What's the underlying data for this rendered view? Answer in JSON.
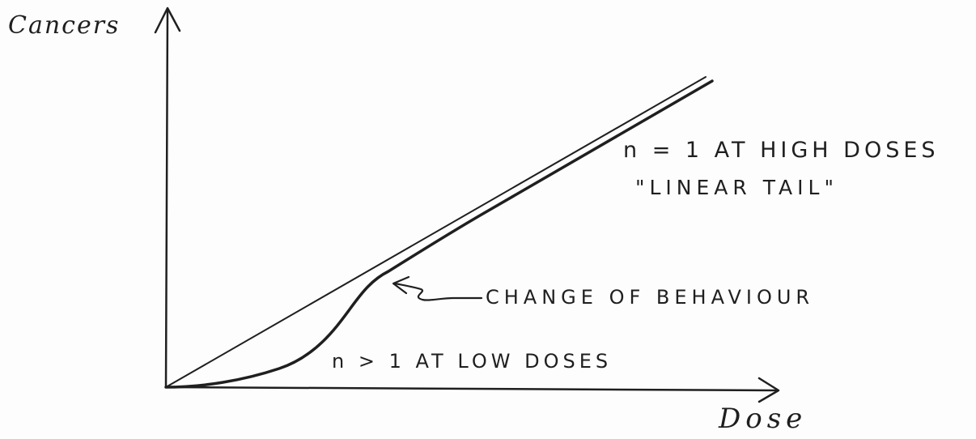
{
  "axes": {
    "y_label": "Cancers",
    "x_label": "Dose"
  },
  "annotations": {
    "high_dose": "n = 1 AT HIGH DOSES",
    "linear_tail": "\"LINEAR TAIL\"",
    "change": "CHANGE OF BEHAVIOUR",
    "low_dose": "n > 1 AT LOW DOSES"
  },
  "colors": {
    "ink": "#1f1f1f",
    "paper": "#fdfdfd"
  }
}
